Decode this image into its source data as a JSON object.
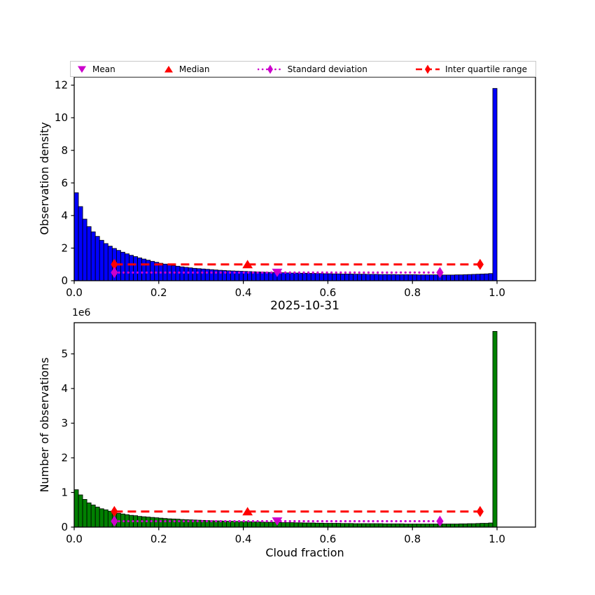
{
  "figure": {
    "background": "#ffffff",
    "title": "2025-10-31"
  },
  "legend": {
    "items": [
      {
        "label": "Mean",
        "marker": "triangle-down",
        "color": "#cc00cc",
        "line": "none"
      },
      {
        "label": "Median",
        "marker": "triangle-up",
        "color": "#ff0000",
        "line": "none"
      },
      {
        "label": "Standard deviation",
        "marker": "diamond",
        "color": "#cc00cc",
        "line": "dotted"
      },
      {
        "label": "Inter quartile range",
        "marker": "diamond",
        "color": "#ff0000",
        "line": "dashed"
      }
    ]
  },
  "chart_data": [
    {
      "type": "bar",
      "panel": "top",
      "title": "",
      "ylabel": "Observation density",
      "xlabel": "",
      "bar_color": "#0000ff",
      "bar_edge": "#000000",
      "bin_width": 0.01,
      "x_start": 0.0,
      "xlim": [
        0.0,
        1.091
      ],
      "ylim": [
        0.0,
        12.5
      ],
      "xticks": [
        0.0,
        0.2,
        0.4,
        0.6,
        0.8,
        1.0
      ],
      "xtick_labels": [
        "0.0",
        "0.2",
        "0.4",
        "0.6",
        "0.8",
        "1.0"
      ],
      "yticks": [
        0,
        2,
        4,
        6,
        8,
        10,
        12
      ],
      "ytick_labels": [
        "0",
        "2",
        "4",
        "6",
        "8",
        "10",
        "12"
      ],
      "grid": false,
      "values": [
        5.4,
        4.55,
        3.78,
        3.32,
        3.0,
        2.72,
        2.48,
        2.28,
        2.12,
        1.98,
        1.86,
        1.75,
        1.65,
        1.56,
        1.48,
        1.4,
        1.33,
        1.26,
        1.19,
        1.13,
        1.07,
        1.02,
        0.97,
        0.93,
        0.89,
        0.85,
        0.82,
        0.79,
        0.76,
        0.74,
        0.72,
        0.7,
        0.68,
        0.66,
        0.64,
        0.63,
        0.61,
        0.6,
        0.59,
        0.58,
        0.57,
        0.56,
        0.55,
        0.54,
        0.53,
        0.52,
        0.51,
        0.5,
        0.5,
        0.49,
        0.48,
        0.47,
        0.47,
        0.46,
        0.46,
        0.45,
        0.45,
        0.44,
        0.44,
        0.43,
        0.43,
        0.42,
        0.42,
        0.41,
        0.41,
        0.41,
        0.4,
        0.4,
        0.4,
        0.39,
        0.39,
        0.39,
        0.38,
        0.38,
        0.38,
        0.38,
        0.37,
        0.37,
        0.37,
        0.37,
        0.37,
        0.36,
        0.36,
        0.36,
        0.36,
        0.36,
        0.36,
        0.35,
        0.35,
        0.35,
        0.36,
        0.36,
        0.37,
        0.38,
        0.39,
        0.4,
        0.41,
        0.42,
        0.44,
        11.8
      ],
      "stats": {
        "mean": 0.48,
        "median": 0.41,
        "std_low": 0.095,
        "std_high": 0.865,
        "q1": 0.095,
        "q3": 0.96,
        "iqr_line_y": 1.0,
        "std_line_y": 0.5
      }
    },
    {
      "type": "bar",
      "panel": "bottom",
      "title": "2025-10-31",
      "ylabel": "Number of observations",
      "xlabel": "Cloud fraction",
      "offset_text": "1e6",
      "bar_color": "#008000",
      "bar_edge": "#000000",
      "bin_width": 0.01,
      "x_start": 0.0,
      "xlim": [
        0.0,
        1.091
      ],
      "ylim": [
        0.0,
        5.9
      ],
      "y_unit": "1e6",
      "xticks": [
        0.0,
        0.2,
        0.4,
        0.6,
        0.8,
        1.0
      ],
      "xtick_labels": [
        "0.0",
        "0.2",
        "0.4",
        "0.6",
        "0.8",
        "1.0"
      ],
      "yticks": [
        0,
        1,
        2,
        3,
        4,
        5
      ],
      "ytick_labels": [
        "0",
        "1",
        "2",
        "3",
        "4",
        "5"
      ],
      "grid": false,
      "values": [
        1.08,
        0.93,
        0.8,
        0.7,
        0.64,
        0.58,
        0.53,
        0.5,
        0.46,
        0.43,
        0.4,
        0.38,
        0.36,
        0.34,
        0.33,
        0.31,
        0.3,
        0.29,
        0.28,
        0.27,
        0.26,
        0.25,
        0.24,
        0.235,
        0.23,
        0.22,
        0.215,
        0.21,
        0.205,
        0.2,
        0.195,
        0.19,
        0.185,
        0.18,
        0.18,
        0.175,
        0.17,
        0.17,
        0.165,
        0.16,
        0.16,
        0.155,
        0.15,
        0.15,
        0.145,
        0.14,
        0.14,
        0.14,
        0.135,
        0.13,
        0.13,
        0.13,
        0.125,
        0.125,
        0.12,
        0.12,
        0.12,
        0.115,
        0.115,
        0.11,
        0.11,
        0.11,
        0.11,
        0.105,
        0.105,
        0.105,
        0.1,
        0.1,
        0.1,
        0.1,
        0.1,
        0.1,
        0.1,
        0.095,
        0.095,
        0.095,
        0.095,
        0.095,
        0.09,
        0.09,
        0.09,
        0.09,
        0.09,
        0.09,
        0.09,
        0.09,
        0.09,
        0.09,
        0.09,
        0.09,
        0.09,
        0.095,
        0.095,
        0.1,
        0.1,
        0.105,
        0.11,
        0.11,
        0.12,
        5.65
      ],
      "stats": {
        "mean": 0.48,
        "median": 0.41,
        "std_low": 0.095,
        "std_high": 0.865,
        "q1": 0.095,
        "q3": 0.96,
        "iqr_line_y": 0.45,
        "std_line_y": 0.17
      }
    }
  ]
}
